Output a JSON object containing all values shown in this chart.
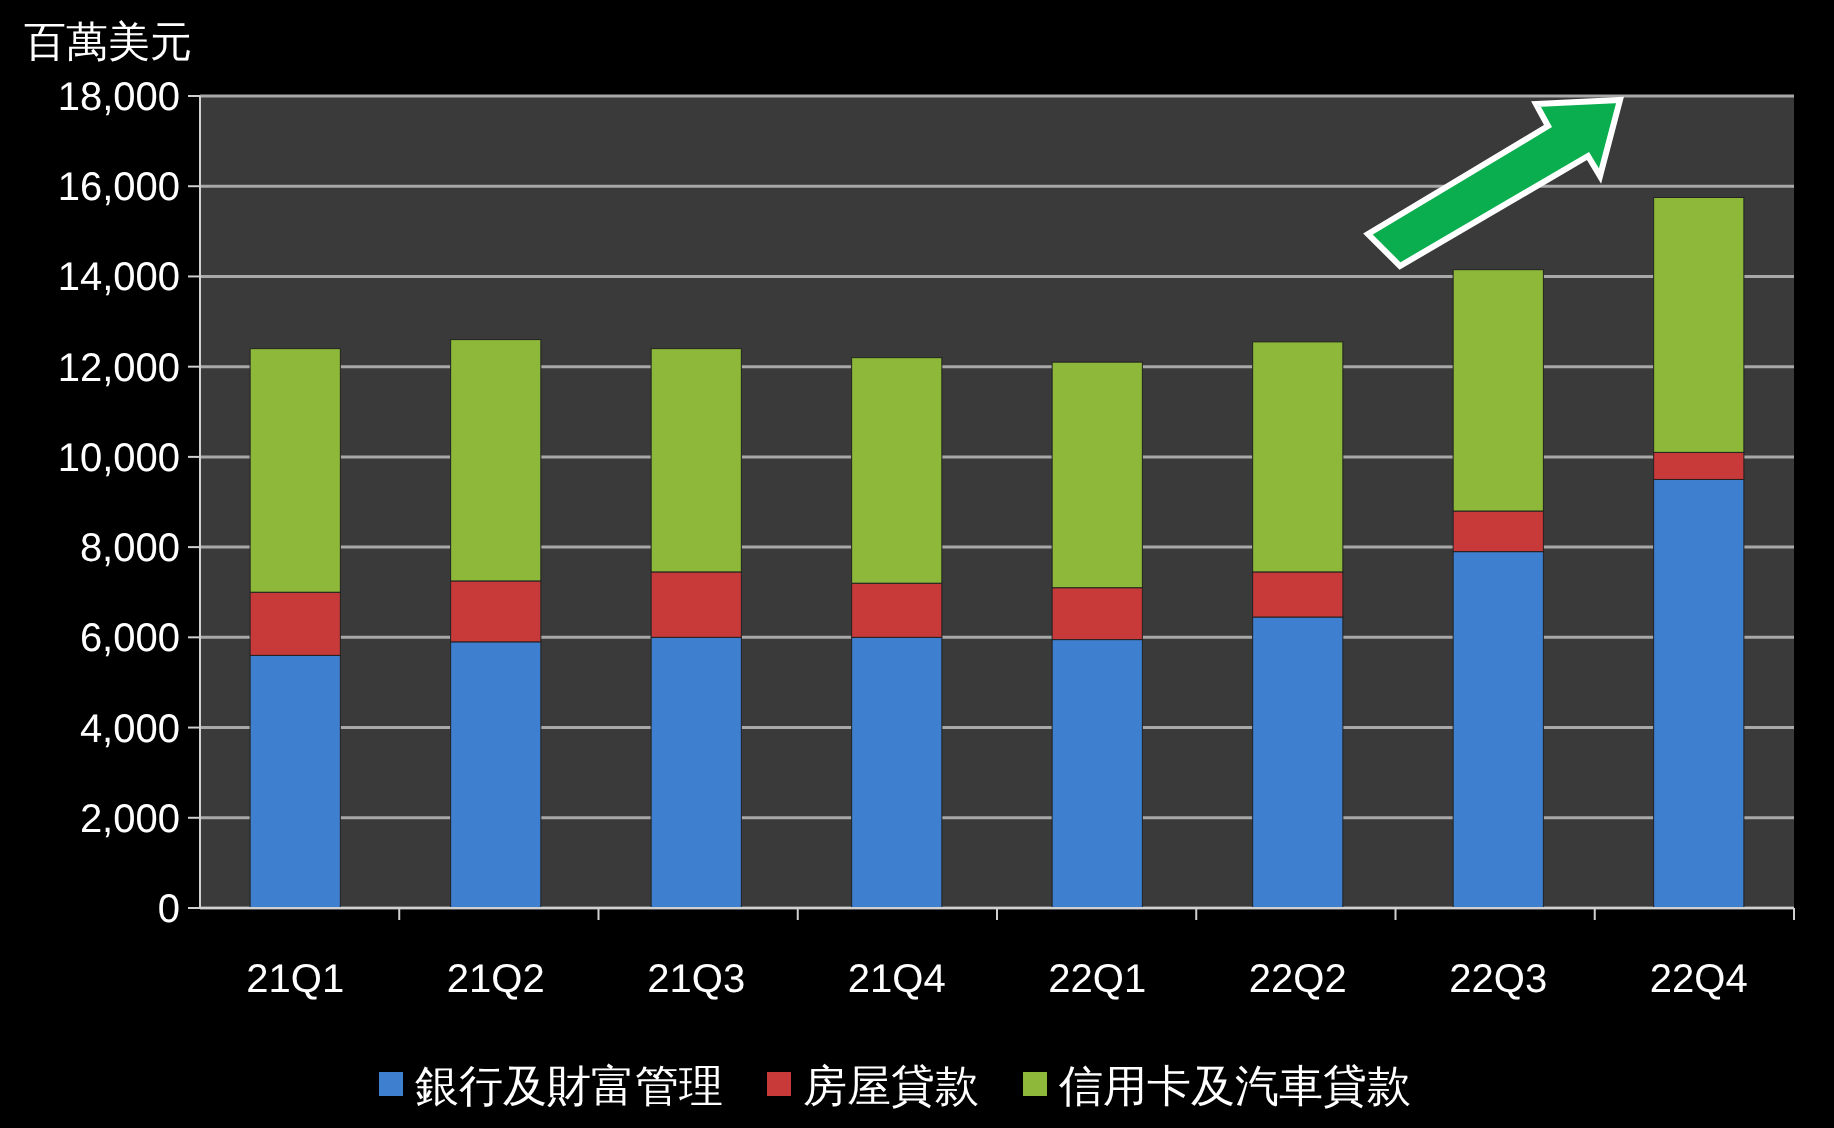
{
  "chart_data": {
    "type": "bar",
    "stacked": true,
    "ylabel": "百萬美元",
    "categories": [
      "21Q1",
      "21Q2",
      "21Q3",
      "21Q4",
      "22Q1",
      "22Q2",
      "22Q3",
      "22Q4"
    ],
    "series": [
      {
        "name": "銀行及財富管理",
        "color": "#3f7fd0",
        "values": [
          5600,
          5900,
          6000,
          6000,
          5950,
          6450,
          7900,
          9500
        ]
      },
      {
        "name": "房屋貸款",
        "color": "#c83a3a",
        "values": [
          1400,
          1350,
          1450,
          1200,
          1150,
          1000,
          900,
          600
        ]
      },
      {
        "name": "信用卡及汽車貸款",
        "color": "#8db83a",
        "values": [
          5400,
          5350,
          4950,
          5000,
          5000,
          5100,
          5350,
          5650
        ]
      }
    ],
    "ylim": [
      0,
      18000
    ],
    "yticks": [
      {
        "value": 0,
        "label": "0"
      },
      {
        "value": 2000,
        "label": "2,000"
      },
      {
        "value": 4000,
        "label": "4,000"
      },
      {
        "value": 6000,
        "label": "6,000"
      },
      {
        "value": 8000,
        "label": "8,000"
      },
      {
        "value": 10000,
        "label": "10,000"
      },
      {
        "value": 12000,
        "label": "12,000"
      },
      {
        "value": 14000,
        "label": "14,000"
      },
      {
        "value": 16000,
        "label": "16,000"
      },
      {
        "value": 18000,
        "label": "18,000"
      }
    ],
    "grid": "y",
    "legend": "bottom"
  }
}
